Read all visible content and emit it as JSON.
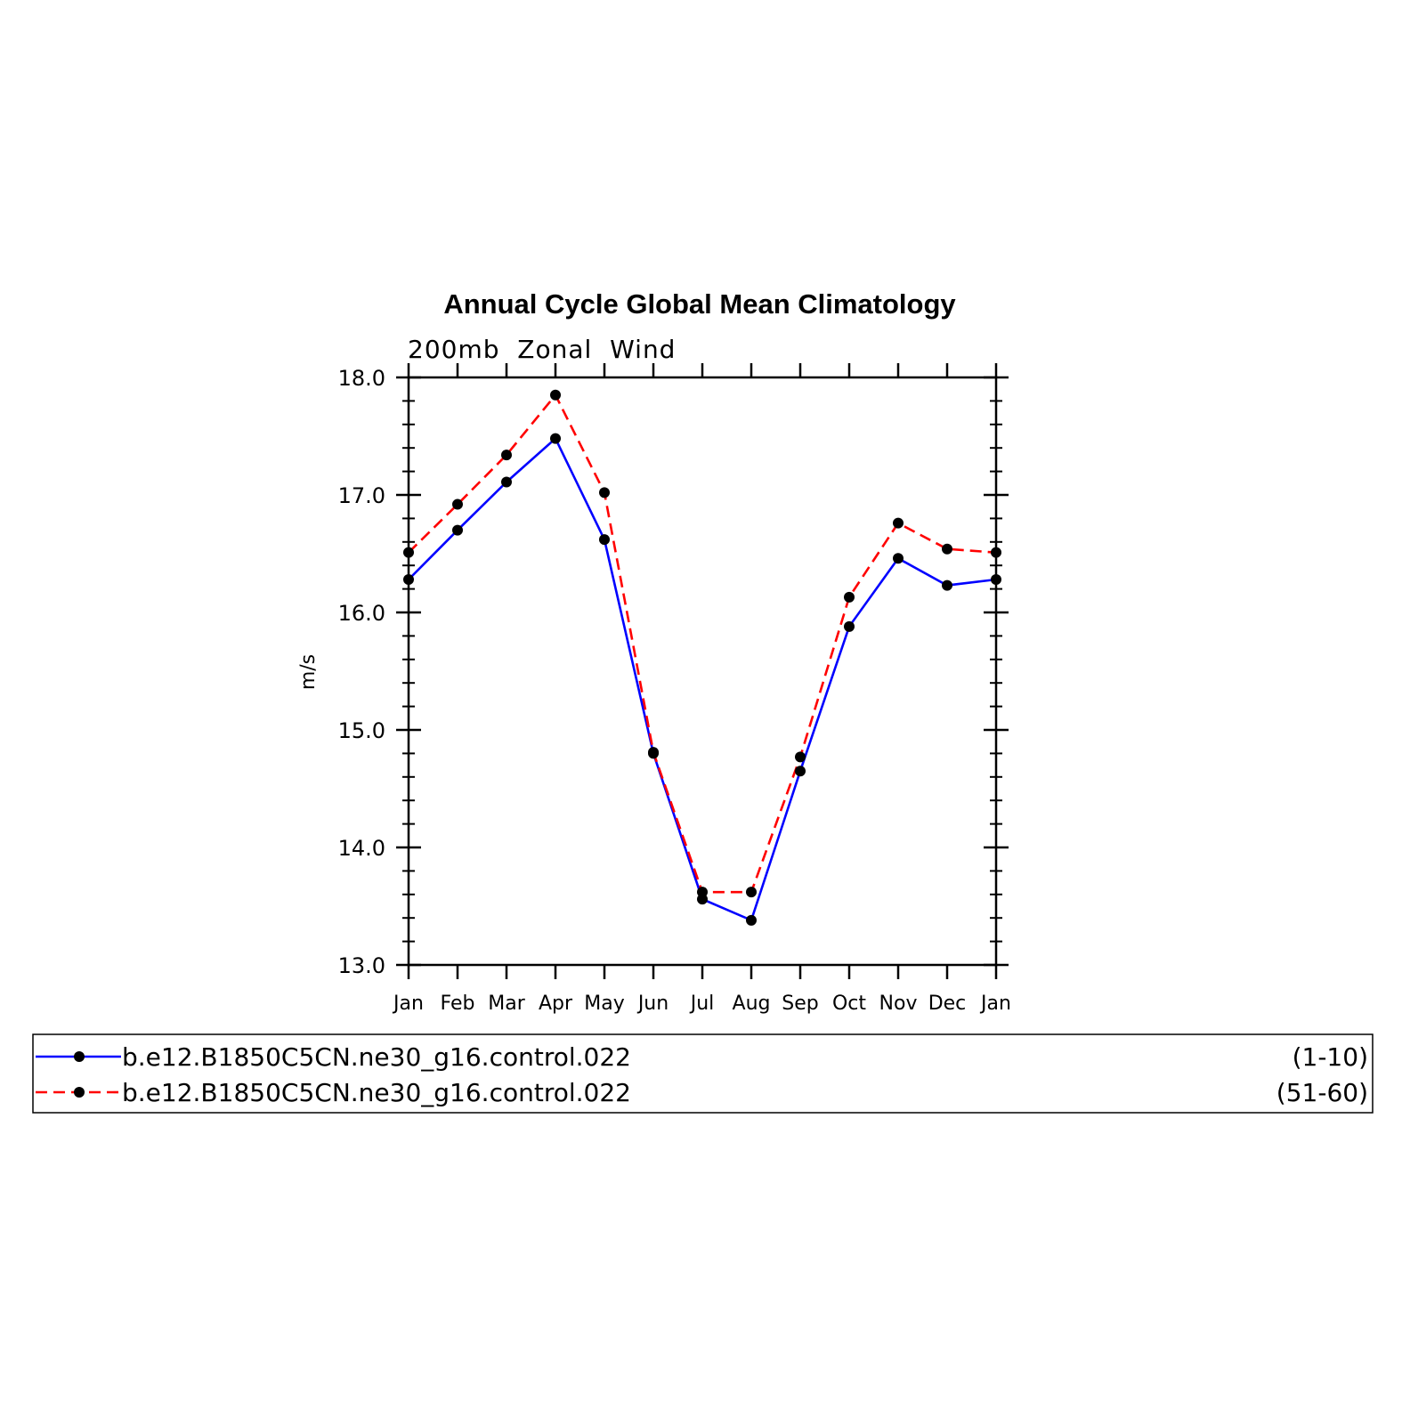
{
  "chart_data": {
    "type": "line",
    "title": "Annual Cycle Global Mean Climatology",
    "subtitle": "200mb  Zonal  Wind",
    "xlabel": "",
    "ylabel": "m/s",
    "categories": [
      "Jan",
      "Feb",
      "Mar",
      "Apr",
      "May",
      "Jun",
      "Jul",
      "Aug",
      "Sep",
      "Oct",
      "Nov",
      "Dec",
      "Jan"
    ],
    "ylim": [
      13.0,
      18.0
    ],
    "yticks": [
      "13.0",
      "14.0",
      "15.0",
      "16.0",
      "17.0",
      "18.0"
    ],
    "grid": false,
    "legend_position": "bottom",
    "series": [
      {
        "name": "b.e12.B1850C5CN.ne30_g16.control.022",
        "years": "(1-10)",
        "color": "#0000ff",
        "line_style": "solid",
        "values": [
          16.28,
          16.7,
          17.11,
          17.48,
          16.62,
          14.8,
          13.56,
          13.38,
          14.65,
          15.88,
          16.46,
          16.23,
          16.28
        ]
      },
      {
        "name": "b.e12.B1850C5CN.ne30_g16.control.022",
        "years": "(51-60)",
        "color": "#ff0000",
        "line_style": "dashed",
        "values": [
          16.51,
          16.92,
          17.34,
          17.85,
          17.02,
          14.81,
          13.62,
          13.62,
          14.77,
          16.13,
          16.76,
          16.54,
          16.51
        ]
      }
    ]
  }
}
